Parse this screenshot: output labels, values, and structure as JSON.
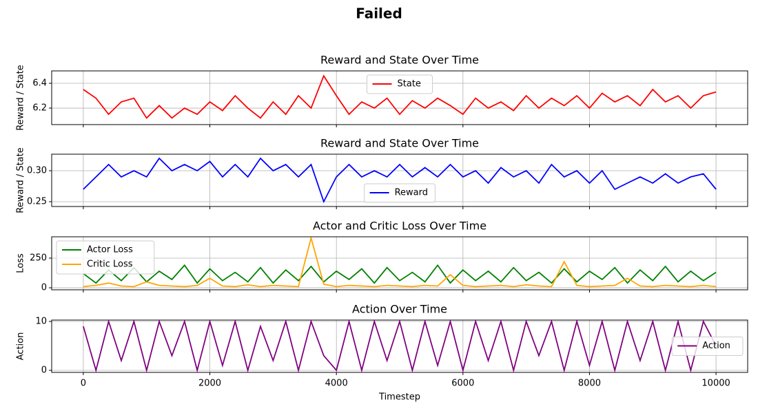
{
  "title": "Failed",
  "chart_data": [
    {
      "type": "line",
      "title": "Reward and State Over Time",
      "ylabel": "Reward / State",
      "x": [
        0,
        200,
        400,
        600,
        800,
        1000,
        1200,
        1400,
        1600,
        1800,
        2000,
        2200,
        2400,
        2600,
        2800,
        3000,
        3200,
        3400,
        3600,
        3800,
        4000,
        4200,
        4400,
        4600,
        4800,
        5000,
        5200,
        5400,
        5600,
        5800,
        6000,
        6200,
        6400,
        6600,
        6800,
        7000,
        7200,
        7400,
        7600,
        7800,
        8000,
        8200,
        8400,
        8600,
        8800,
        9000,
        9200,
        9400,
        9600,
        9800,
        10000
      ],
      "series": [
        {
          "name": "State",
          "color": "#ff0000",
          "values": [
            6.35,
            6.28,
            6.15,
            6.25,
            6.28,
            6.12,
            6.22,
            6.12,
            6.2,
            6.15,
            6.25,
            6.18,
            6.3,
            6.2,
            6.12,
            6.25,
            6.15,
            6.3,
            6.2,
            6.46,
            6.3,
            6.15,
            6.25,
            6.2,
            6.28,
            6.15,
            6.26,
            6.2,
            6.28,
            6.22,
            6.15,
            6.28,
            6.2,
            6.25,
            6.18,
            6.3,
            6.2,
            6.28,
            6.22,
            6.3,
            6.2,
            6.32,
            6.25,
            6.3,
            6.22,
            6.35,
            6.25,
            6.3,
            6.2,
            6.3,
            6.33
          ]
        }
      ],
      "xlim": [
        -500,
        10500
      ],
      "xticks": [
        0,
        2000,
        4000,
        6000,
        8000,
        10000
      ],
      "ylim": [
        6.067,
        6.5
      ],
      "yticks": [
        6.2,
        6.4
      ],
      "grid": true,
      "legend": "upper center"
    },
    {
      "type": "line",
      "title": "Reward and State Over Time",
      "ylabel": "Reward / State",
      "x": [
        0,
        200,
        400,
        600,
        800,
        1000,
        1200,
        1400,
        1600,
        1800,
        2000,
        2200,
        2400,
        2600,
        2800,
        3000,
        3200,
        3400,
        3600,
        3800,
        4000,
        4200,
        4400,
        4600,
        4800,
        5000,
        5200,
        5400,
        5600,
        5800,
        6000,
        6200,
        6400,
        6600,
        6800,
        7000,
        7200,
        7400,
        7600,
        7800,
        8000,
        8200,
        8400,
        8600,
        8800,
        9000,
        9200,
        9400,
        9600,
        9800,
        10000
      ],
      "series": [
        {
          "name": "Reward",
          "color": "#0000ff",
          "values": [
            0.27,
            0.29,
            0.31,
            0.29,
            0.3,
            0.29,
            0.32,
            0.3,
            0.31,
            0.3,
            0.315,
            0.29,
            0.31,
            0.29,
            0.32,
            0.3,
            0.31,
            0.29,
            0.31,
            0.25,
            0.29,
            0.31,
            0.29,
            0.3,
            0.29,
            0.31,
            0.29,
            0.305,
            0.29,
            0.31,
            0.29,
            0.3,
            0.28,
            0.305,
            0.29,
            0.3,
            0.28,
            0.31,
            0.29,
            0.3,
            0.28,
            0.3,
            0.27,
            0.28,
            0.29,
            0.28,
            0.295,
            0.28,
            0.29,
            0.295,
            0.27
          ]
        }
      ],
      "xlim": [
        -500,
        10500
      ],
      "xticks": [
        0,
        2000,
        4000,
        6000,
        8000,
        10000
      ],
      "ylim": [
        0.2422,
        0.3267
      ],
      "yticks": [
        0.25,
        {
          "value": 0.3,
          "label": "0.30"
        }
      ],
      "grid": true,
      "legend": "lower center"
    },
    {
      "type": "line",
      "title": "Actor and Critic Loss Over Time",
      "ylabel": "Loss",
      "x": [
        0,
        200,
        400,
        600,
        800,
        1000,
        1200,
        1400,
        1600,
        1800,
        2000,
        2200,
        2400,
        2600,
        2800,
        3000,
        3200,
        3400,
        3600,
        3800,
        4000,
        4200,
        4400,
        4600,
        4800,
        5000,
        5200,
        5400,
        5600,
        5800,
        6000,
        6200,
        6400,
        6600,
        6800,
        7000,
        7200,
        7400,
        7600,
        7800,
        8000,
        8200,
        8400,
        8600,
        8800,
        9000,
        9200,
        9400,
        9600,
        9800,
        10000
      ],
      "series": [
        {
          "name": "Actor Loss",
          "color": "#008000",
          "values": [
            120,
            40,
            150,
            60,
            170,
            50,
            140,
            70,
            190,
            40,
            160,
            60,
            130,
            50,
            170,
            40,
            150,
            60,
            180,
            50,
            140,
            70,
            160,
            40,
            170,
            60,
            130,
            50,
            190,
            40,
            150,
            60,
            140,
            50,
            170,
            60,
            130,
            40,
            160,
            50,
            140,
            70,
            170,
            40,
            150,
            60,
            180,
            50,
            140,
            60,
            130
          ]
        },
        {
          "name": "Critic Loss",
          "color": "#ffa500",
          "values": [
            10,
            20,
            40,
            15,
            10,
            50,
            20,
            15,
            10,
            20,
            80,
            15,
            10,
            25,
            10,
            20,
            15,
            10,
            420,
            30,
            10,
            20,
            15,
            10,
            20,
            15,
            10,
            20,
            15,
            110,
            20,
            10,
            15,
            20,
            10,
            25,
            15,
            10,
            220,
            20,
            10,
            15,
            20,
            80,
            15,
            10,
            20,
            15,
            10,
            20,
            10
          ]
        }
      ],
      "xlim": [
        -500,
        10500
      ],
      "xticks": [
        0,
        2000,
        4000,
        6000,
        8000,
        10000
      ],
      "ylim": [
        -17,
        430
      ],
      "yticks": [
        0,
        250
      ],
      "grid": true,
      "legend": "upper left"
    },
    {
      "type": "line",
      "title": "Action Over Time",
      "ylabel": "Action",
      "xlabel": "Timestep",
      "x": [
        0,
        200,
        400,
        600,
        800,
        1000,
        1200,
        1400,
        1600,
        1800,
        2000,
        2200,
        2400,
        2600,
        2800,
        3000,
        3200,
        3400,
        3600,
        3800,
        4000,
        4200,
        4400,
        4600,
        4800,
        5000,
        5200,
        5400,
        5600,
        5800,
        6000,
        6200,
        6400,
        6600,
        6800,
        7000,
        7200,
        7400,
        7600,
        7800,
        8000,
        8200,
        8400,
        8600,
        8800,
        9000,
        9200,
        9400,
        9600,
        9800,
        10000
      ],
      "series": [
        {
          "name": "Action",
          "color": "#800080",
          "values": [
            9,
            0,
            10,
            2,
            10,
            0,
            10,
            3,
            10,
            0,
            10,
            1,
            10,
            0,
            9,
            2,
            10,
            0,
            10,
            3,
            0,
            10,
            0,
            10,
            2,
            10,
            0,
            10,
            1,
            10,
            0,
            10,
            2,
            10,
            0,
            10,
            3,
            10,
            0,
            10,
            1,
            10,
            0,
            10,
            2,
            10,
            0,
            10,
            0,
            10,
            5
          ]
        }
      ],
      "xlim": [
        -500,
        10500
      ],
      "xticks": [
        0,
        2000,
        4000,
        6000,
        8000,
        10000
      ],
      "ylim": [
        -0.42,
        10.28
      ],
      "yticks": [
        0,
        10
      ],
      "grid": true,
      "legend": "center right"
    }
  ]
}
